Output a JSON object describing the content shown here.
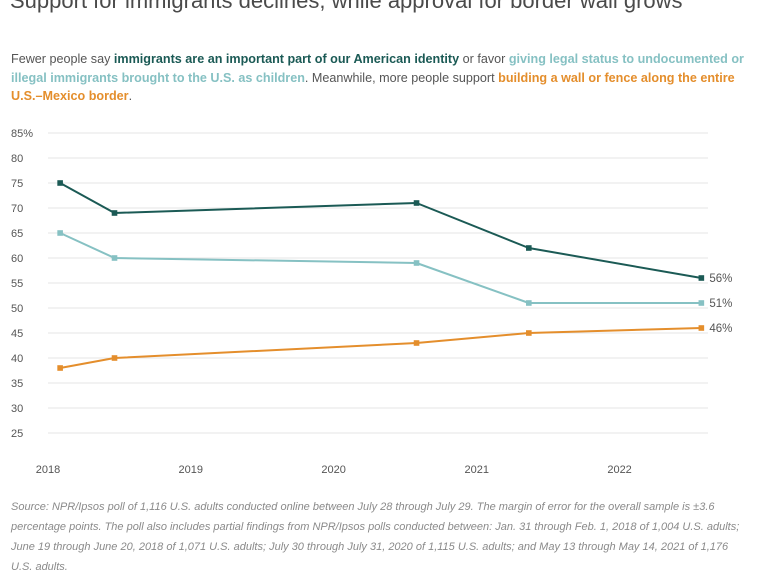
{
  "title": "Support for immigrants declines, while approval for border wall grows",
  "subtitle": {
    "p1": "Fewer people say ",
    "h1": "immigrants are an important part of our American identity",
    "p2": " or favor ",
    "h2": "giving legal status to undocumented or illegal immigrants brought to the U.S. as children",
    "p3": ". Meanwhile, more people support ",
    "h3": "building a wall or fence along the entire U.S.–Mexico border",
    "p4": "."
  },
  "source": "Source: NPR/Ipsos poll of 1,116 U.S. adults conducted online between July 28 through July 29. The margin of error for the overall sample is ±3.6 percentage points. The poll also includes partial findings from NPR/Ipsos polls conducted between: Jan. 31 through Feb. 1, 2018 of 1,004 U.S. adults; June 19 through June 20, 2018 of 1,071 U.S. adults; July 30 through July 31, 2020 of 1,115 U.S. adults; and May 13 through May 14, 2021 of 1,176 U.S. adults.",
  "chart_data": {
    "type": "line",
    "xlim": [
      "2018-01-01",
      "2022-08-15"
    ],
    "ylim": [
      25,
      85
    ],
    "yticks": [
      25,
      30,
      35,
      40,
      45,
      50,
      55,
      60,
      65,
      70,
      75,
      80,
      85
    ],
    "ytick_labels": [
      "25",
      "30",
      "35",
      "40",
      "45",
      "50",
      "55",
      "60",
      "65",
      "70",
      "75",
      "80",
      "85%"
    ],
    "xticks": [
      "2018-01-01",
      "2019-01-01",
      "2020-01-01",
      "2021-01-01",
      "2022-01-01"
    ],
    "xtick_labels": [
      "2018",
      "2019",
      "2020",
      "2021",
      "2022"
    ],
    "grid": true,
    "x": [
      "2018-02-01",
      "2018-06-20",
      "2020-07-31",
      "2021-05-14",
      "2022-07-29"
    ],
    "series": [
      {
        "values": [
          75,
          69,
          71,
          62,
          56
        ],
        "color": "#1b5a55",
        "end_label": "56%"
      },
      {
        "values": [
          65,
          60,
          59,
          51,
          51
        ],
        "color": "#86c1c3",
        "end_label": "51%"
      },
      {
        "values": [
          38,
          40,
          43,
          45,
          46
        ],
        "color": "#e48e2c",
        "end_label": "46%"
      }
    ]
  }
}
